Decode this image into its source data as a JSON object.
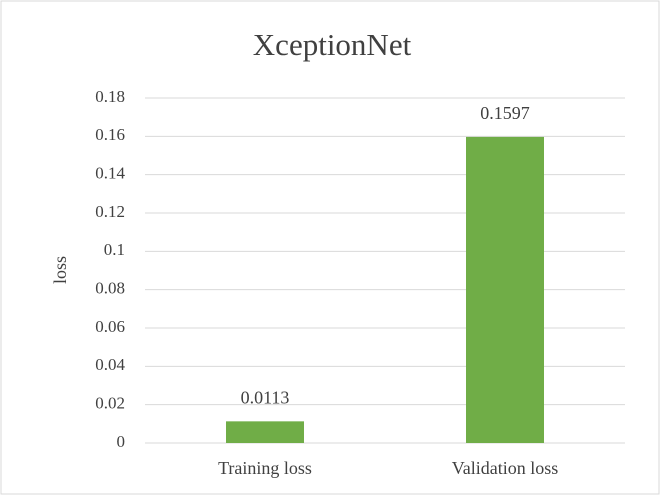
{
  "chart_data": {
    "type": "bar",
    "title": "XceptionNet",
    "ylabel": "loss",
    "categories": [
      "Training loss",
      "Validation loss"
    ],
    "values": [
      0.0113,
      0.1597
    ],
    "color": "#70ad47",
    "ylim": [
      0,
      0.18
    ],
    "yticks": [
      0,
      0.02,
      0.04,
      0.06,
      0.08,
      0.1,
      0.12,
      0.14,
      0.16,
      0.18
    ],
    "grid": true
  }
}
